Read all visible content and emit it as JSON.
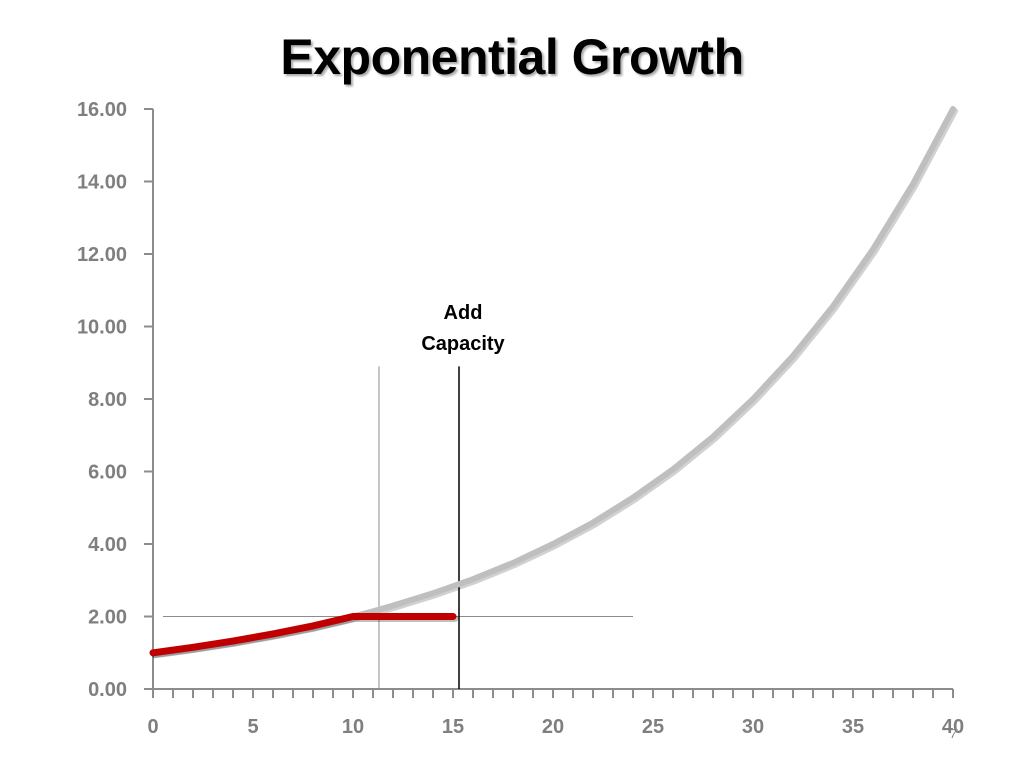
{
  "title": "Exponential Growth",
  "page_number": "7",
  "colors": {
    "axis": "#8c8c8c",
    "tick_label": "#7f7f7f",
    "demand_curve": "#bfbfbf",
    "capacity_curve": "#c00000",
    "capacity_line": "#000000",
    "threshold_lines": "#8c8c8c"
  },
  "chart_data": {
    "type": "line",
    "title": "Exponential Growth",
    "xlabel": "",
    "ylabel": "",
    "xlim": [
      0,
      40
    ],
    "ylim": [
      0,
      16
    ],
    "x_ticks": [
      "0",
      "5",
      "10",
      "15",
      "20",
      "25",
      "30",
      "35",
      "40"
    ],
    "x_tick_values": [
      0,
      5,
      10,
      15,
      20,
      25,
      30,
      35,
      40
    ],
    "y_ticks": [
      "0.00",
      "2.00",
      "4.00",
      "6.00",
      "8.00",
      "10.00",
      "12.00",
      "14.00",
      "16.00"
    ],
    "y_tick_values": [
      0,
      2,
      4,
      6,
      8,
      10,
      12,
      14,
      16
    ],
    "minor_tick_step": 1,
    "grid": false,
    "legend": "none",
    "series": [
      {
        "x": [
          0,
          2,
          4,
          6,
          8,
          10,
          11,
          12,
          14,
          16,
          18,
          20,
          22,
          24,
          26,
          28,
          30,
          32,
          34,
          36,
          38,
          40
        ],
        "y": [
          1.0,
          1.15,
          1.32,
          1.52,
          1.74,
          2.0,
          2.14,
          2.3,
          2.64,
          3.03,
          3.48,
          4.0,
          4.59,
          5.28,
          6.06,
          6.96,
          8.0,
          9.19,
          10.56,
          12.13,
          13.93,
          16.0
        ]
      },
      {
        "x": [
          0,
          2,
          4,
          6,
          8,
          10,
          11,
          12,
          13,
          14,
          15
        ],
        "y": [
          1.0,
          1.15,
          1.32,
          1.52,
          1.74,
          2.0,
          2.0,
          2.0,
          2.0,
          2.0,
          2.0
        ]
      }
    ],
    "reference_lines": [
      {
        "orientation": "horizontal",
        "y": 2.0,
        "x_from": 0.5,
        "x_to": 24
      },
      {
        "orientation": "vertical",
        "x": 11.3,
        "y_from": 0,
        "y_to": 8.9
      },
      {
        "orientation": "vertical",
        "x": 15.3,
        "y_from": 0,
        "y_to": 8.9
      }
    ],
    "annotations": [
      {
        "lines": [
          "Add",
          "Capacity"
        ],
        "x": 15.3,
        "y": 9.0
      }
    ]
  }
}
